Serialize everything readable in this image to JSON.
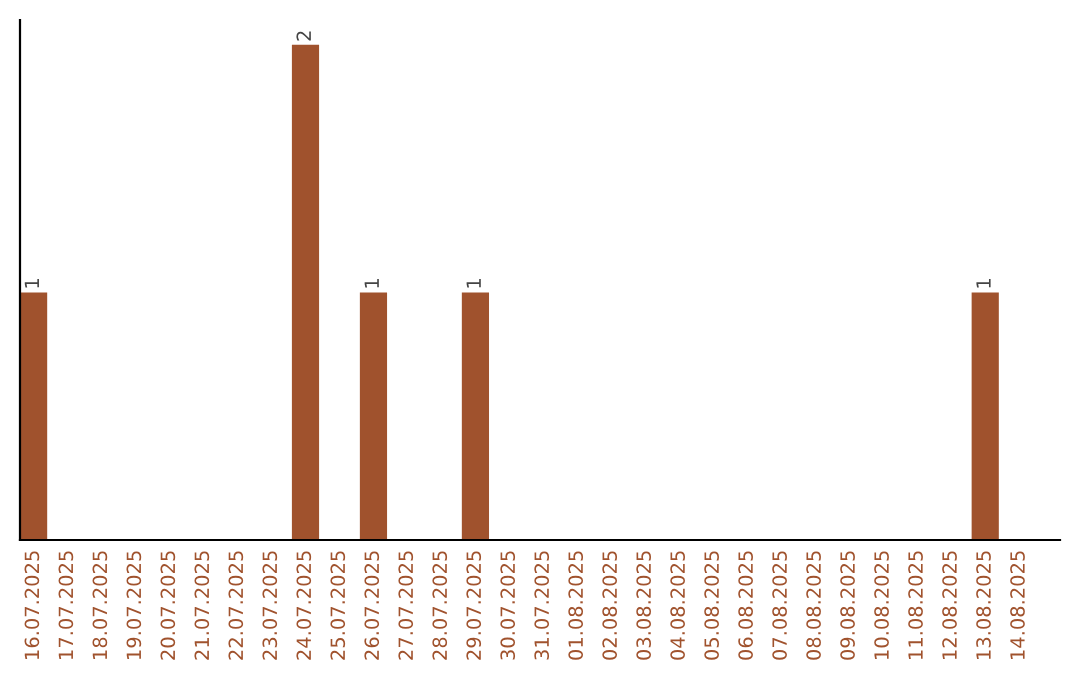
{
  "chart_data": {
    "type": "bar",
    "categories": [
      "16.07.2025",
      "17.07.2025",
      "18.07.2025",
      "19.07.2025",
      "20.07.2025",
      "21.07.2025",
      "22.07.2025",
      "23.07.2025",
      "24.07.2025",
      "25.07.2025",
      "26.07.2025",
      "27.07.2025",
      "28.07.2025",
      "29.07.2025",
      "30.07.2025",
      "31.07.2025",
      "01.08.2025",
      "02.08.2025",
      "03.08.2025",
      "04.08.2025",
      "05.08.2025",
      "06.08.2025",
      "07.08.2025",
      "08.08.2025",
      "09.08.2025",
      "10.08.2025",
      "11.08.2025",
      "12.08.2025",
      "13.08.2025",
      "14.08.2025"
    ],
    "values": [
      1,
      0,
      0,
      0,
      0,
      0,
      0,
      0,
      2,
      0,
      1,
      0,
      0,
      1,
      0,
      0,
      0,
      0,
      0,
      0,
      0,
      0,
      0,
      0,
      0,
      0,
      0,
      0,
      1,
      0
    ],
    "value_labels": [
      "1",
      null,
      null,
      null,
      null,
      null,
      null,
      null,
      "2",
      null,
      "1",
      null,
      null,
      "1",
      null,
      null,
      null,
      null,
      null,
      null,
      null,
      null,
      null,
      null,
      null,
      null,
      null,
      null,
      "1",
      null
    ],
    "color": "#a0522d",
    "grid": false,
    "tick_labels": "x"
  }
}
